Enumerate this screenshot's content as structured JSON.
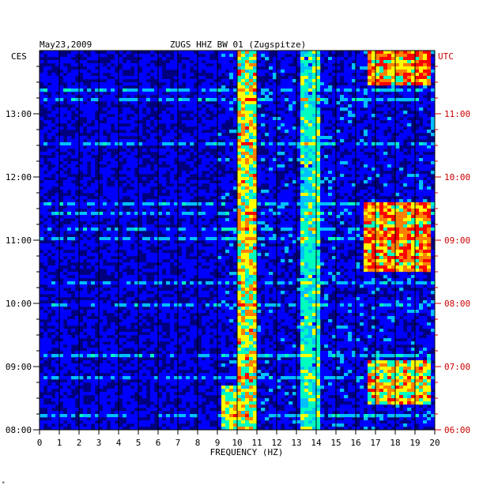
{
  "chart_data": {
    "type": "heatmap",
    "date": "May23,2009",
    "title": "ZUGS HHZ BW 01 (Zugspitze)",
    "xlabel": "FREQUENCY (HZ)",
    "x_ticks": [
      "0",
      "1",
      "2",
      "3",
      "4",
      "5",
      "6",
      "7",
      "8",
      "9",
      "10",
      "11",
      "12",
      "13",
      "14",
      "15",
      "16",
      "17",
      "18",
      "19",
      "20"
    ],
    "xlim": [
      0,
      20
    ],
    "left_axis": {
      "timezone": "CES",
      "ticks": [
        {
          "label": "08:00",
          "hours_from_bottom": 0
        },
        {
          "label": "09:00",
          "hours_from_bottom": 1
        },
        {
          "label": "10:00",
          "hours_from_bottom": 2
        },
        {
          "label": "11:00",
          "hours_from_bottom": 3
        },
        {
          "label": "12:00",
          "hours_from_bottom": 4
        },
        {
          "label": "13:00",
          "hours_from_bottom": 5
        }
      ]
    },
    "right_axis": {
      "timezone": "UTC",
      "ticks": [
        {
          "label": "06:00",
          "hours_from_bottom": 0
        },
        {
          "label": "07:00",
          "hours_from_bottom": 1
        },
        {
          "label": "08:00",
          "hours_from_bottom": 2
        },
        {
          "label": "09:00",
          "hours_from_bottom": 3
        },
        {
          "label": "10:00",
          "hours_from_bottom": 4
        },
        {
          "label": "11:00",
          "hours_from_bottom": 5
        }
      ]
    },
    "time_span_hours": 6,
    "grid": true,
    "colormap": [
      "#00007f",
      "#0000ff",
      "#00bfff",
      "#00ffbf",
      "#ffff00",
      "#ff8000",
      "#ff0000"
    ],
    "features": [
      {
        "name": "band-10hz",
        "x_range": [
          10,
          11
        ],
        "time_range": [
          0,
          6
        ],
        "intensity": 0.55
      },
      {
        "name": "band-13-14hz",
        "x_range": [
          13.3,
          14.1
        ],
        "time_range": [
          0,
          6
        ],
        "intensity": 0.35
      },
      {
        "name": "band-17-19hz-upper",
        "x_range": [
          16.6,
          19.8
        ],
        "time_range": [
          5.45,
          6
        ],
        "intensity": 0.75
      },
      {
        "name": "band-17-19hz-middle",
        "x_range": [
          16.4,
          19.8
        ],
        "time_range": [
          2.5,
          3.6
        ],
        "intensity": 0.7
      },
      {
        "name": "band-17-19hz-lower",
        "x_range": [
          16.6,
          19.8
        ],
        "time_range": [
          0.4,
          1.1
        ],
        "intensity": 0.6
      },
      {
        "name": "band-9hz-burst",
        "x_range": [
          9.2,
          10
        ],
        "time_range": [
          0,
          0.7
        ],
        "intensity": 0.45
      }
    ]
  },
  "footer": {
    "mark": "*"
  }
}
